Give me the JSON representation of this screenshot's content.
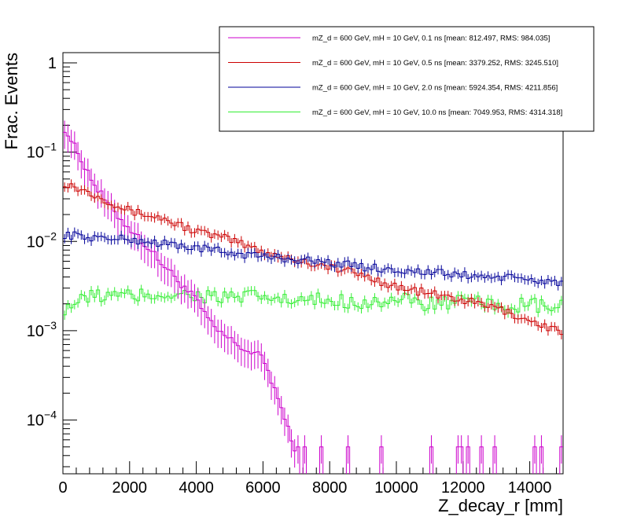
{
  "chart_data": {
    "type": "line",
    "style": "histogram-step-with-error-bars",
    "title": "",
    "xlabel": "Z_decay_r [mm]",
    "ylabel": "Frac. Events",
    "xlim": [
      0,
      15000
    ],
    "ylim": [
      2.5e-05,
      1.3
    ],
    "yscale": "log",
    "bin_width": 100,
    "x_ticks": [
      0,
      2000,
      4000,
      6000,
      8000,
      10000,
      12000,
      14000
    ],
    "x_tick_labels": [
      "0",
      "2000",
      "4000",
      "6000",
      "8000",
      "10000",
      "12000",
      "14000"
    ],
    "y_tick_labels": [
      {
        "base": "1",
        "exp": "",
        "value": 1
      },
      {
        "base": "10",
        "exp": "−1",
        "value": 0.1
      },
      {
        "base": "10",
        "exp": "−2",
        "value": 0.01
      },
      {
        "base": "10",
        "exp": "−3",
        "value": 0.001
      },
      {
        "base": "10",
        "exp": "−4",
        "value": 0.0001
      }
    ],
    "legend_position": "top-right",
    "series": [
      {
        "name": "mZ_d = 600 GeV, mH = 10 GeV, 0.1 ns [mean: 812.497, RMS: 984.035]",
        "color": "#cc00cc",
        "x": [
          0,
          500,
          1000,
          1500,
          2000,
          2500,
          3000,
          3500,
          4000,
          4500,
          5000,
          5500,
          6000,
          6300,
          6600,
          6900
        ],
        "values": [
          0.2,
          0.09,
          0.04,
          0.022,
          0.014,
          0.009,
          0.0055,
          0.0035,
          0.0022,
          0.0011,
          0.0008,
          0.0006,
          0.0005,
          0.00025,
          0.00012,
          5e-05
        ]
      },
      {
        "name": "mZ_d = 600 GeV, mH = 10 GeV, 0.5 ns [mean: 3379.252, RMS: 3245.510]",
        "color": "#cc0000",
        "x": [
          0,
          1000,
          2000,
          3000,
          4000,
          5000,
          6000,
          7000,
          8000,
          9000,
          10000,
          11000,
          12000,
          13000,
          14000,
          15000
        ],
        "values": [
          0.046,
          0.033,
          0.022,
          0.018,
          0.013,
          0.0105,
          0.0077,
          0.0062,
          0.0052,
          0.0042,
          0.0031,
          0.0026,
          0.0022,
          0.0018,
          0.0013,
          0.00095
        ]
      },
      {
        "name": "mZ_d = 600 GeV, mH = 10 GeV, 2.0 ns [mean: 5924.354, RMS: 4211.856]",
        "color": "#000099",
        "x": [
          0,
          1000,
          2000,
          3000,
          4000,
          5000,
          6000,
          7000,
          8000,
          9000,
          10000,
          11000,
          12000,
          13000,
          14000,
          15000
        ],
        "values": [
          0.012,
          0.011,
          0.0105,
          0.0095,
          0.0085,
          0.0075,
          0.0068,
          0.0063,
          0.0058,
          0.0052,
          0.0048,
          0.0045,
          0.0042,
          0.004,
          0.0037,
          0.0035
        ]
      },
      {
        "name": "mZ_d = 600 GeV, mH = 10 GeV, 10.0 ns [mean: 7049.953, RMS: 4314.318]",
        "color": "#33ee33",
        "x": [
          0,
          1000,
          2000,
          3000,
          4000,
          5000,
          6000,
          7000,
          8000,
          9000,
          10000,
          11000,
          12000,
          13000,
          14000,
          15000
        ],
        "values": [
          0.0018,
          0.0025,
          0.0024,
          0.0026,
          0.0025,
          0.0023,
          0.0024,
          0.0021,
          0.0022,
          0.0021,
          0.0022,
          0.002,
          0.0021,
          0.0019,
          0.0019,
          0.0018
        ]
      }
    ]
  }
}
